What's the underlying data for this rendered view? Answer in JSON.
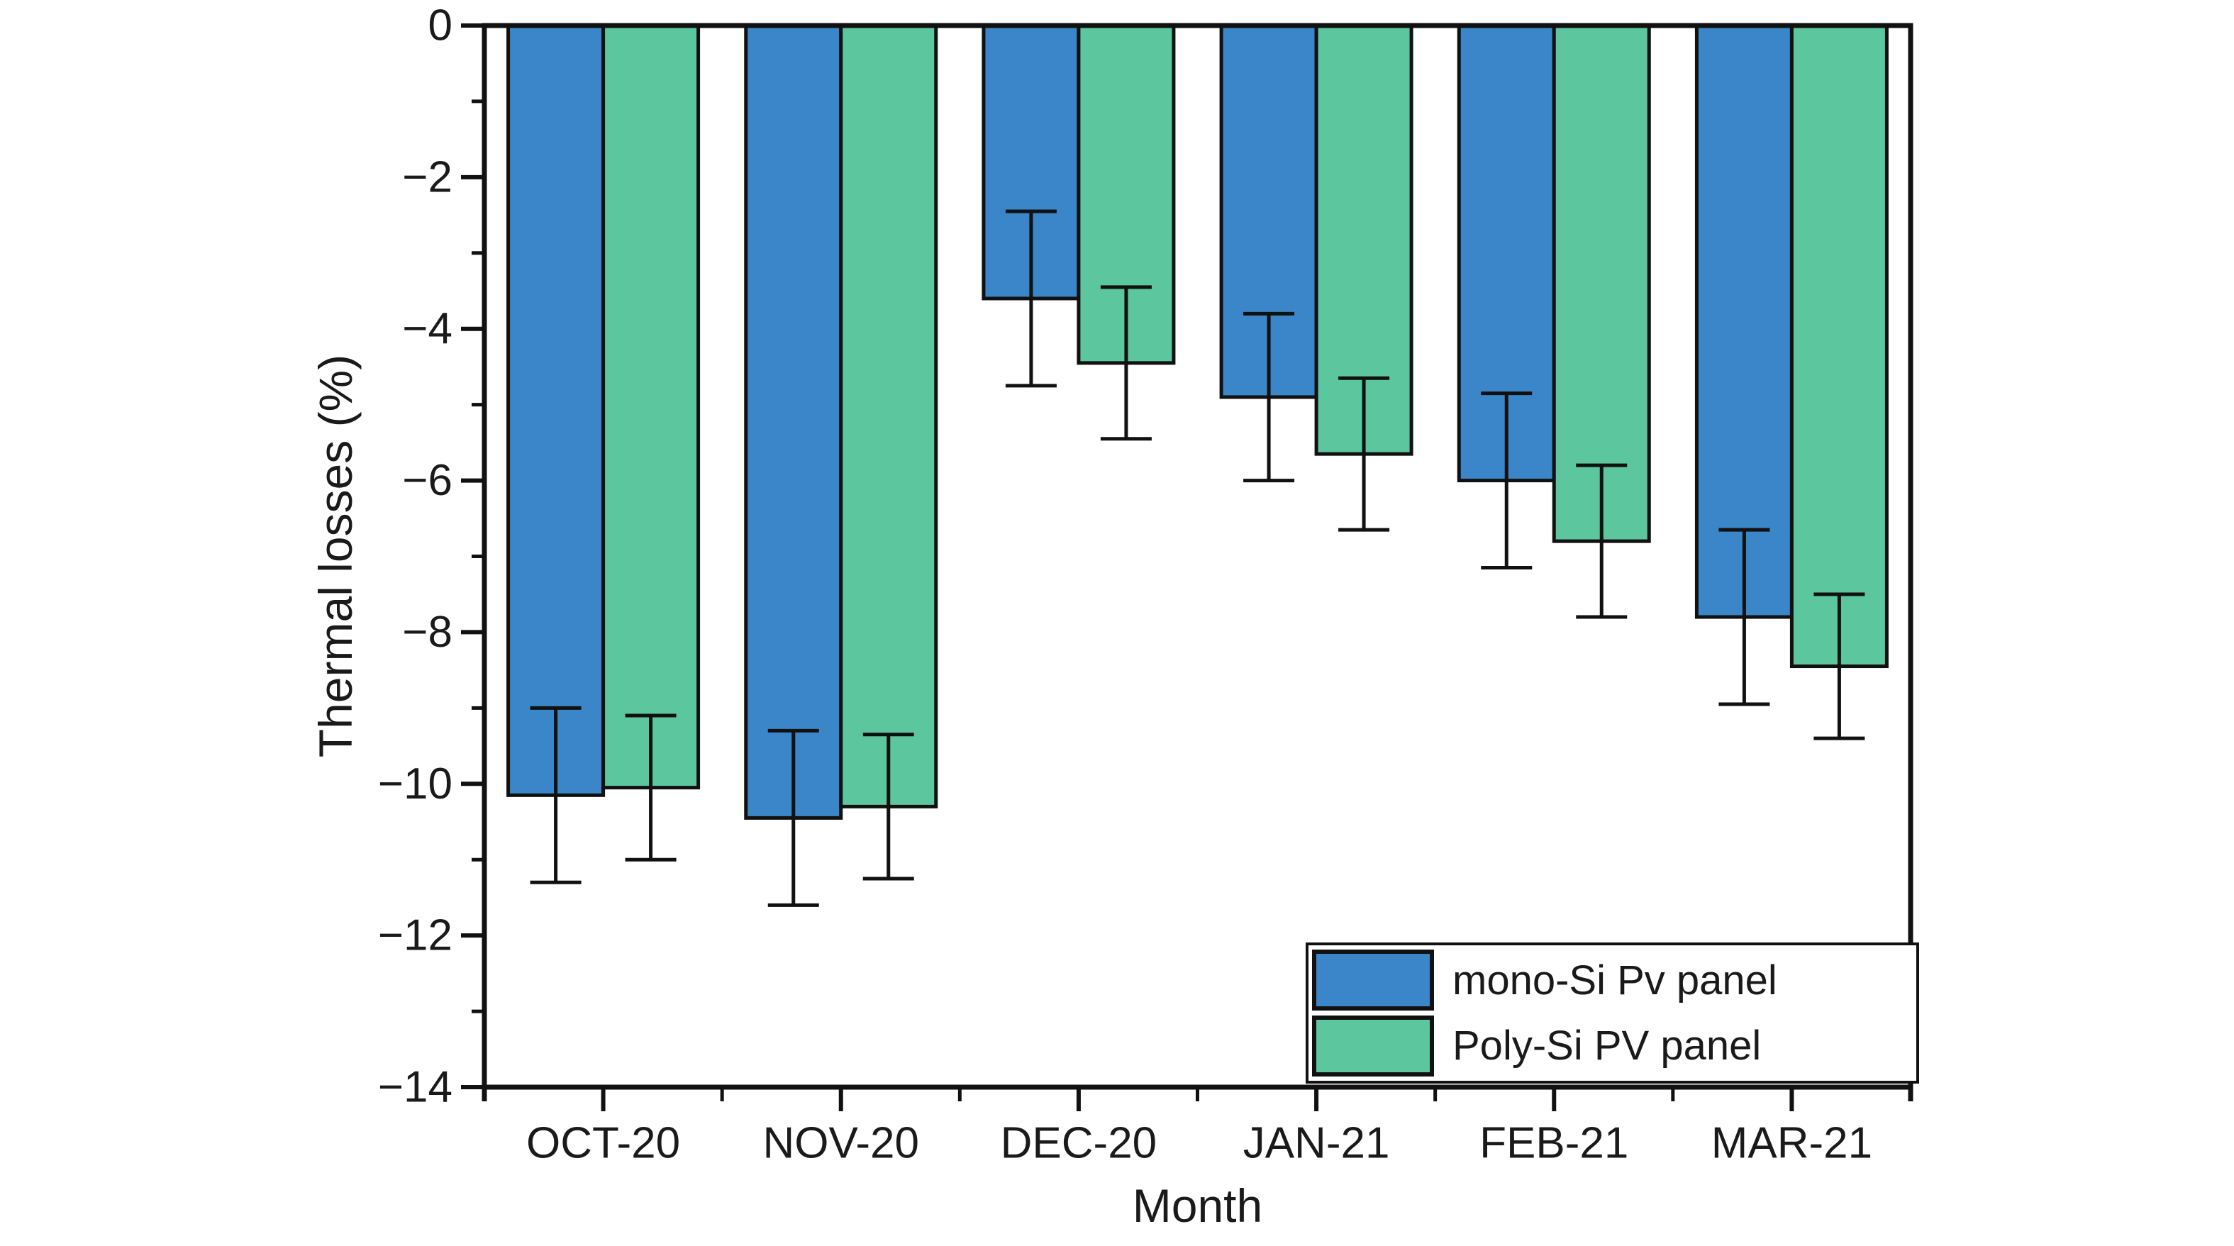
{
  "chart_data": {
    "type": "bar",
    "title": "",
    "xlabel": "Month",
    "ylabel": "Thermal losses (%)",
    "categories": [
      "OCT-20",
      "NOV-20",
      "DEC-20",
      "JAN-21",
      "FEB-21",
      "MAR-21"
    ],
    "series": [
      {
        "name": "mono-Si Pv panel",
        "color": "#3a86c8",
        "values": [
          -10.15,
          -10.45,
          -3.6,
          -4.9,
          -6.0,
          -7.8
        ],
        "errors": [
          1.15,
          1.15,
          1.15,
          1.1,
          1.15,
          1.15
        ]
      },
      {
        "name": "Poly-Si PV panel",
        "color": "#5cc79e",
        "values": [
          -10.05,
          -10.3,
          -4.45,
          -5.65,
          -6.8,
          -8.45
        ],
        "errors": [
          0.95,
          0.95,
          1.0,
          1.0,
          1.0,
          0.95
        ]
      }
    ],
    "ylim": [
      -14,
      0
    ],
    "y_major_ticks": [
      0,
      -2,
      -4,
      -6,
      -8,
      -10,
      -12,
      -14
    ],
    "y_major_tick_labels": [
      "0",
      "−2",
      "−4",
      "−6",
      "−8",
      "−10",
      "−12",
      "−14"
    ],
    "y_minor_ticks": [
      -1,
      -3,
      -5,
      -7,
      -9,
      -11,
      -13
    ],
    "legend_position": "bottom-right",
    "grid": "off",
    "frame_color": "#111111",
    "background_color": "#ffffff",
    "error_bar_color": "#111111"
  }
}
